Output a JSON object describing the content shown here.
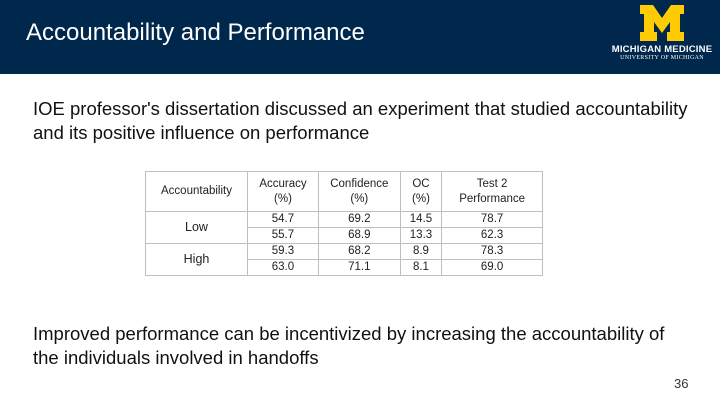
{
  "slide": {
    "title": "Accountability and Performance",
    "page_number": "36"
  },
  "logo": {
    "letter": "M",
    "name": "MICHIGAN MEDICINE",
    "subtitle": "UNIVERSITY OF MICHIGAN",
    "letter_color": "#ffcb05",
    "background_color": "#00274c"
  },
  "paragraphs": {
    "top": "IOE professor's dissertation discussed an experiment that studied accountability and its positive influence on performance",
    "bottom": "Improved performance can be incentivized by increasing the accountability of the individuals involved in handoffs"
  },
  "table": {
    "headers": [
      "Accountability",
      "Accuracy (%)",
      "Confidence (%)",
      "OC (%)",
      "Test 2 Performance"
    ],
    "groups": [
      {
        "label": "Low",
        "rows": [
          [
            "54.7",
            "69.2",
            "14.5",
            "78.7"
          ],
          [
            "55.7",
            "68.9",
            "13.3",
            "62.3"
          ]
        ]
      },
      {
        "label": "High",
        "rows": [
          [
            "59.3",
            "68.2",
            "8.9",
            "78.3"
          ],
          [
            "63.0",
            "71.1",
            "8.1",
            "69.0"
          ]
        ]
      }
    ]
  }
}
